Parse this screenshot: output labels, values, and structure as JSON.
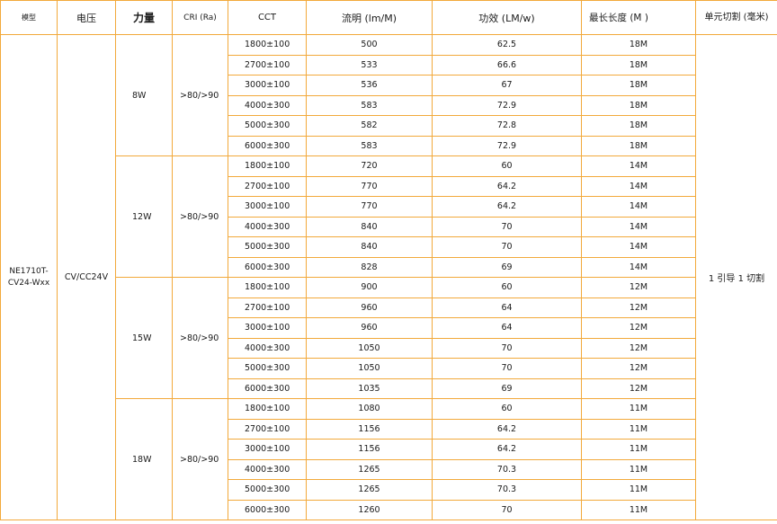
{
  "header": {
    "model": "模型",
    "voltage": "电压",
    "power": "力量",
    "cri": "CRI (Ra)",
    "cct": "CCT",
    "flux": "流明 (lm/M)",
    "efficacy": "功效 (LM/w)",
    "max_length": "最长长度 (M )",
    "unit_cut": "单元切割 (毫米)"
  },
  "model_value": "NE1710T-CV24-Wxx",
  "voltage_value": "CV/CC24V",
  "unit_cut_value": "1 引导 1 切割",
  "groups": [
    {
      "power": "8W",
      "cri": ">80/>90",
      "rows": [
        {
          "cct": "1800±100",
          "flux": "500",
          "efficacy": "62.5",
          "max_length": "18M"
        },
        {
          "cct": "2700±100",
          "flux": "533",
          "efficacy": "66.6",
          "max_length": "18M"
        },
        {
          "cct": "3000±100",
          "flux": "536",
          "efficacy": "67",
          "max_length": "18M"
        },
        {
          "cct": "4000±300",
          "flux": "583",
          "efficacy": "72.9",
          "max_length": "18M"
        },
        {
          "cct": "5000±300",
          "flux": "582",
          "efficacy": "72.8",
          "max_length": "18M"
        },
        {
          "cct": "6000±300",
          "flux": "583",
          "efficacy": "72.9",
          "max_length": "18M"
        }
      ]
    },
    {
      "power": "12W",
      "cri": ">80/>90",
      "rows": [
        {
          "cct": "1800±100",
          "flux": "720",
          "efficacy": "60",
          "max_length": "14M"
        },
        {
          "cct": "2700±100",
          "flux": "770",
          "efficacy": "64.2",
          "max_length": "14M"
        },
        {
          "cct": "3000±100",
          "flux": "770",
          "efficacy": "64.2",
          "max_length": "14M"
        },
        {
          "cct": "4000±300",
          "flux": "840",
          "efficacy": "70",
          "max_length": "14M"
        },
        {
          "cct": "5000±300",
          "flux": "840",
          "efficacy": "70",
          "max_length": "14M"
        },
        {
          "cct": "6000±300",
          "flux": "828",
          "efficacy": "69",
          "max_length": "14M"
        }
      ]
    },
    {
      "power": "15W",
      "cri": ">80/>90",
      "rows": [
        {
          "cct": "1800±100",
          "flux": "900",
          "efficacy": "60",
          "max_length": "12M"
        },
        {
          "cct": "2700±100",
          "flux": "960",
          "efficacy": "64",
          "max_length": "12M"
        },
        {
          "cct": "3000±100",
          "flux": "960",
          "efficacy": "64",
          "max_length": "12M"
        },
        {
          "cct": "4000±300",
          "flux": "1050",
          "efficacy": "70",
          "max_length": "12M"
        },
        {
          "cct": "5000±300",
          "flux": "1050",
          "efficacy": "70",
          "max_length": "12M"
        },
        {
          "cct": "6000±300",
          "flux": "1035",
          "efficacy": "69",
          "max_length": "12M"
        }
      ]
    },
    {
      "power": "18W",
      "cri": ">80/>90",
      "rows": [
        {
          "cct": "1800±100",
          "flux": "1080",
          "efficacy": "60",
          "max_length": "11M"
        },
        {
          "cct": "2700±100",
          "flux": "1156",
          "efficacy": "64.2",
          "max_length": "11M"
        },
        {
          "cct": "3000±100",
          "flux": "1156",
          "efficacy": "64.2",
          "max_length": "11M"
        },
        {
          "cct": "4000±300",
          "flux": "1265",
          "efficacy": "70.3",
          "max_length": "11M"
        },
        {
          "cct": "5000±300",
          "flux": "1265",
          "efficacy": "70.3",
          "max_length": "11M"
        },
        {
          "cct": "6000±300",
          "flux": "1260",
          "efficacy": "70",
          "max_length": "11M"
        }
      ]
    }
  ],
  "colors": {
    "border": "#f2a93b",
    "text": "#1a1a1a",
    "background": "#ffffff"
  }
}
